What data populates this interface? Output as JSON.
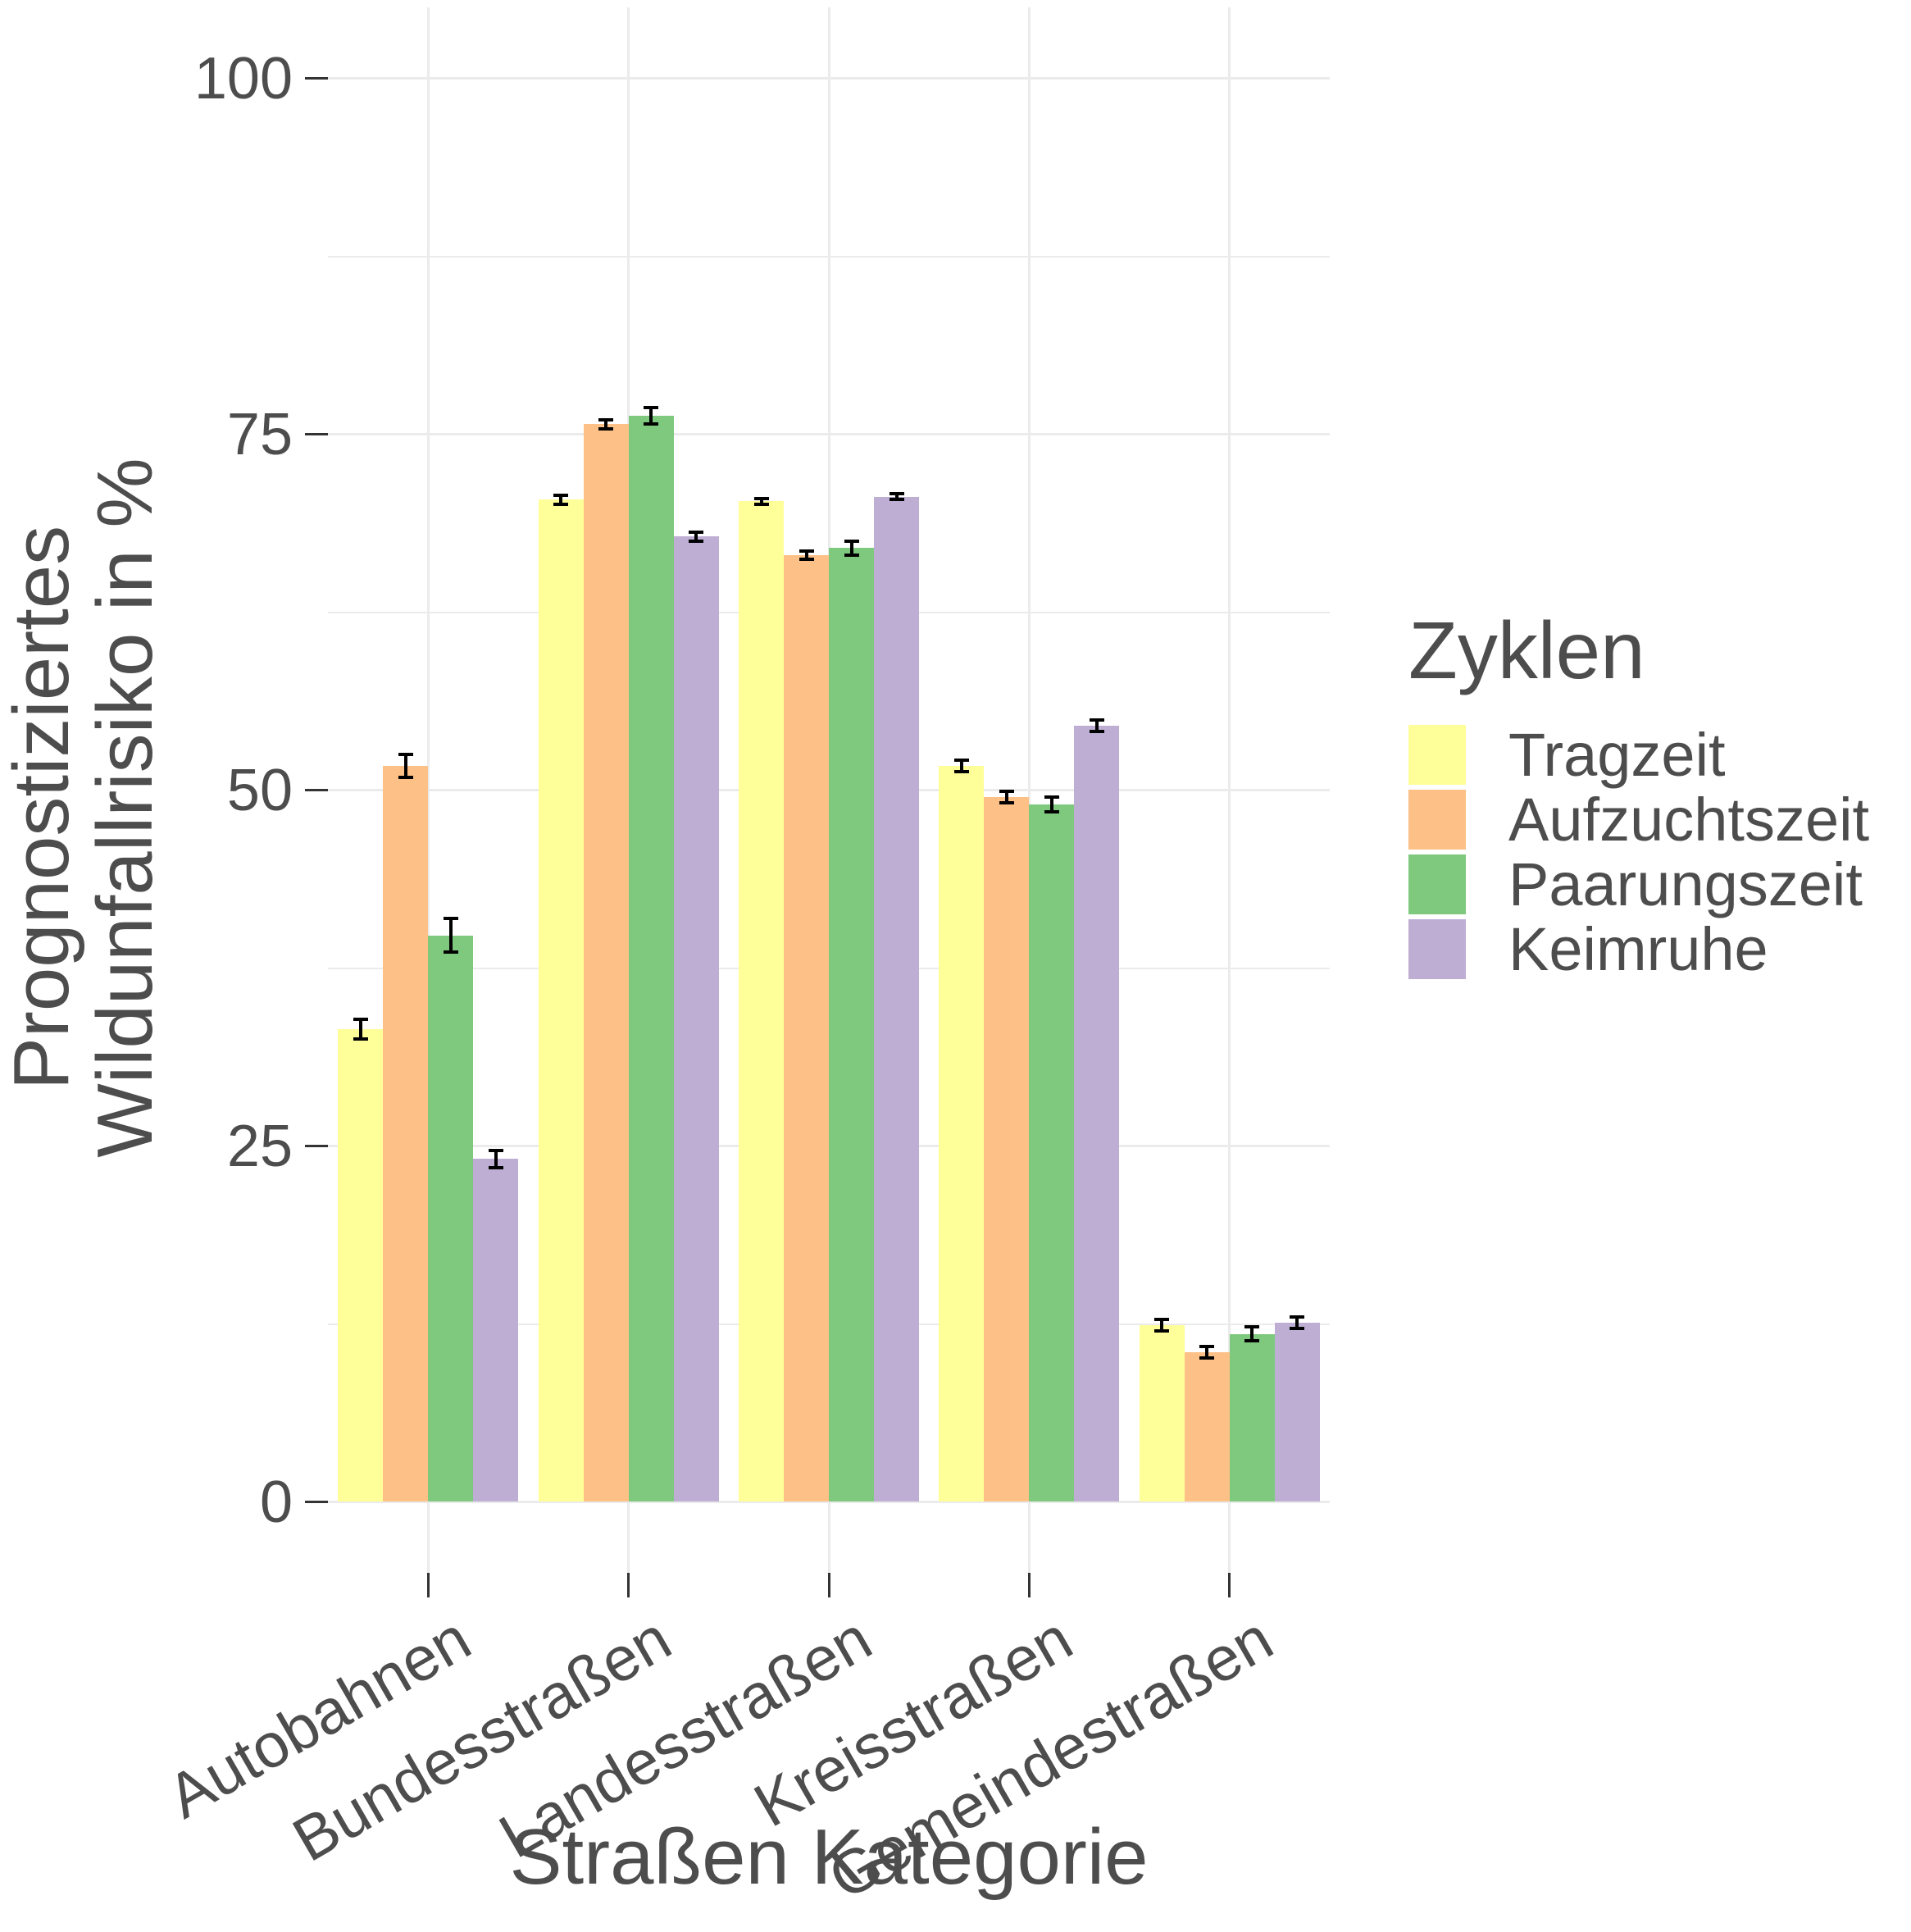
{
  "chart_data": {
    "type": "bar",
    "title": "",
    "xlabel": "Straßen Kategorie",
    "ylabel": "Prognostiziertes Wildunfallrisiko in %",
    "ylabel_lines": [
      "Prognostiziertes",
      "Wildunfallrisiko in %"
    ],
    "categories": [
      "Autobahnen",
      "Bundesstraßen",
      "Landesstraßen",
      "Kreisstraßen",
      "Gemeindestraßen"
    ],
    "y_ticks": [
      100,
      75,
      50,
      25,
      0
    ],
    "ylim": [
      0,
      100
    ],
    "grid": {
      "major": [
        0,
        25,
        50,
        75,
        100
      ],
      "minor": [
        12.5,
        37.5,
        62.5,
        87.5
      ]
    },
    "legend_title": "Zyklen",
    "legend_position": "right",
    "series": [
      {
        "name": "Tragzeit",
        "color": "#FFFF99",
        "values": [
          33.2,
          70.4,
          70.3,
          51.7,
          12.4
        ],
        "errors": [
          0.7,
          0.3,
          0.2,
          0.4,
          0.4
        ]
      },
      {
        "name": "Aufzuchtszeit",
        "color": "#FDC086",
        "values": [
          51.7,
          75.7,
          66.5,
          49.5,
          10.5
        ],
        "errors": [
          0.8,
          0.3,
          0.3,
          0.4,
          0.4
        ]
      },
      {
        "name": "Paarungszeit",
        "color": "#7FC97F",
        "values": [
          39.8,
          76.3,
          67.0,
          49.0,
          11.8
        ],
        "errors": [
          1.2,
          0.6,
          0.5,
          0.5,
          0.5
        ]
      },
      {
        "name": "Keimruhe",
        "color": "#BEAED4",
        "values": [
          24.1,
          67.8,
          70.6,
          54.5,
          12.6
        ],
        "errors": [
          0.6,
          0.3,
          0.2,
          0.4,
          0.4
        ]
      }
    ],
    "colors": {
      "background": "#FFFFFF",
      "gridline": "#EBEBEB",
      "tick_mark": "#333333",
      "text": "#4D4D4D",
      "error_bar": "#000000"
    }
  }
}
